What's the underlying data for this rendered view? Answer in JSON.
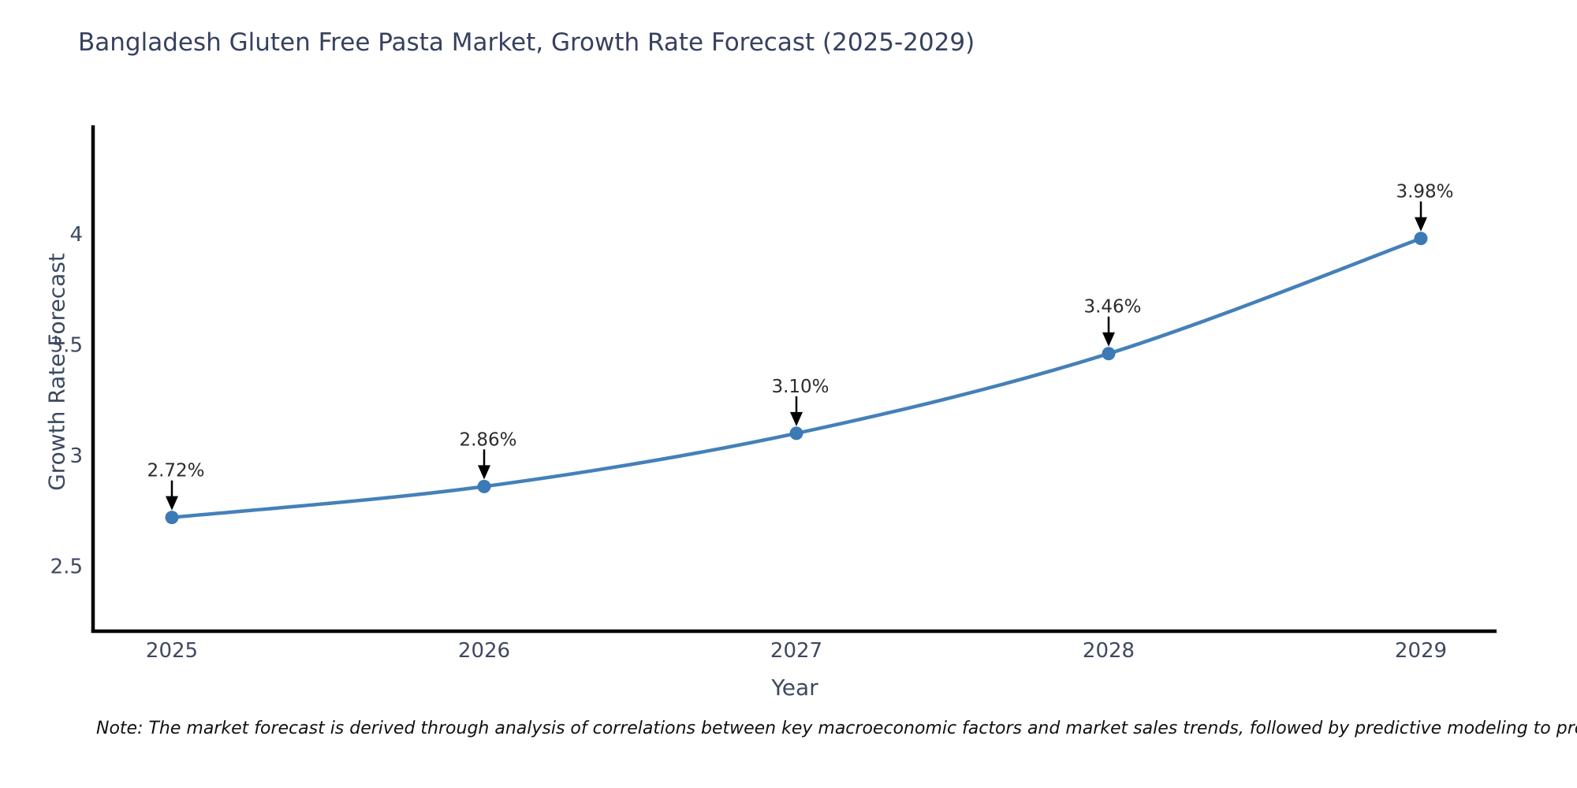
{
  "title": "Bangladesh Gluten Free Pasta Market, Growth Rate Forecast (2025-2029)",
  "note": "Note: The market forecast is derived through analysis of correlations between key macroeconomic factors and market sales trends, followed by predictive modeling to project future sales",
  "chart_data": {
    "type": "line",
    "title": "Bangladesh Gluten Free Pasta Market, Growth Rate Forecast (2025-2029)",
    "xlabel": "Year",
    "ylabel": "Growth Rate Forecast",
    "x": [
      2025,
      2026,
      2027,
      2028,
      2029
    ],
    "y": [
      2.72,
      2.86,
      3.1,
      3.46,
      3.98
    ],
    "point_labels": [
      "2.72%",
      "2.86%",
      "3.10%",
      "3.46%",
      "3.98%"
    ],
    "xticks": [
      "2025",
      "2026",
      "2027",
      "2028",
      "2029"
    ],
    "yticks": [
      "2.5",
      "3",
      "3.5",
      "4"
    ],
    "ytick_values": [
      2.5,
      3.0,
      3.5,
      4.0
    ],
    "xlim": [
      2025,
      2029
    ],
    "ylim": [
      2.2,
      4.4
    ],
    "grid": false,
    "legend": "none",
    "line_color": "#4580b8",
    "marker_color": "#3c7ab6",
    "annotation_color": "#2b2b2b",
    "arrow_color": "#000000",
    "axis_color": "#000000",
    "tick_color": "#3d4960"
  }
}
